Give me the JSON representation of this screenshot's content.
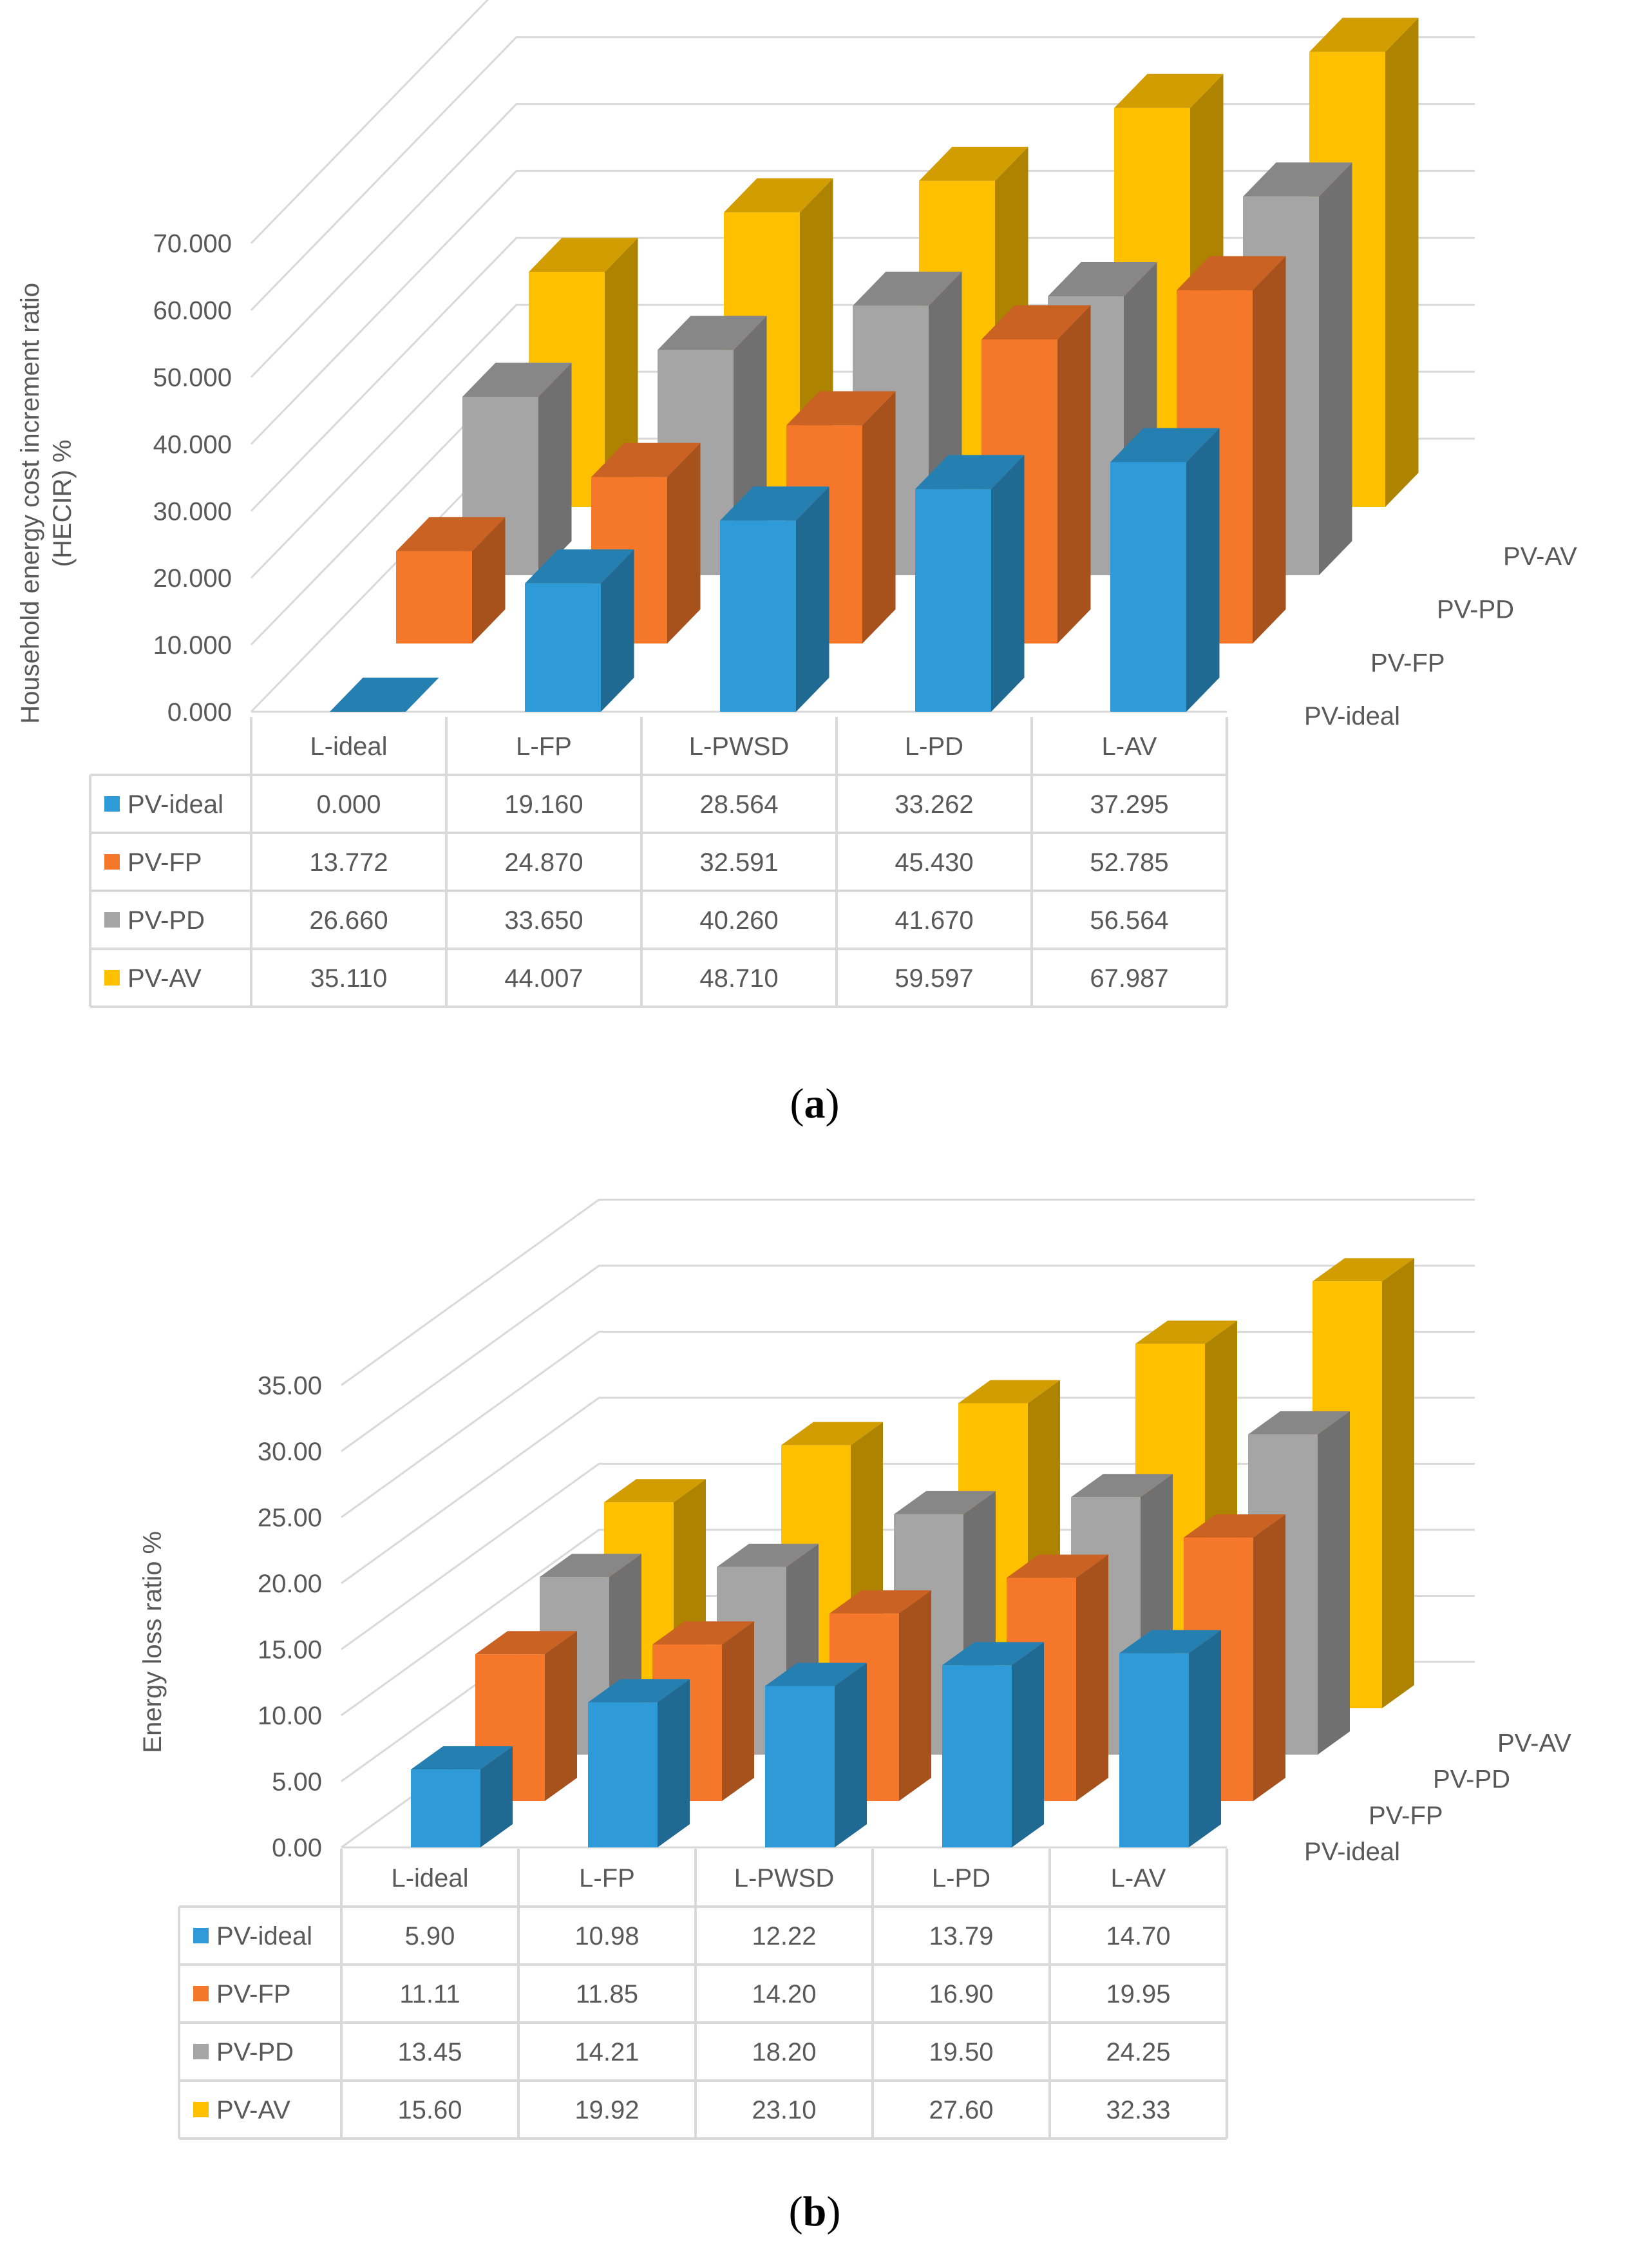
{
  "colors": {
    "PV-ideal": "#2e9bd8",
    "PV-FP": "#f5782a",
    "PV-PD": "#a5a5a5",
    "PV-AV": "#ffc000"
  },
  "chart_data": [
    {
      "id": "a",
      "type": "bar3d",
      "caption": "a",
      "ylabel_lines": [
        "Household energy cost increment ratio",
        "(HECIR)  %"
      ],
      "xlabel": "",
      "ylim": [
        0,
        70
      ],
      "ytick_labels": [
        "0.000",
        "10.000",
        "20.000",
        "30.000",
        "40.000",
        "50.000",
        "60.000",
        "70.000"
      ],
      "categories": [
        "L-ideal",
        "L-FP",
        "L-PWSD",
        "L-PD",
        "L-AV"
      ],
      "series": [
        {
          "name": "PV-ideal",
          "values": [
            0.0,
            19.16,
            28.564,
            33.262,
            37.295
          ],
          "labels": [
            "0.000",
            "19.160",
            "28.564",
            "33.262",
            "37.295"
          ]
        },
        {
          "name": "PV-FP",
          "values": [
            13.772,
            24.87,
            32.591,
            45.43,
            52.785
          ],
          "labels": [
            "13.772",
            "24.870",
            "32.591",
            "45.430",
            "52.785"
          ]
        },
        {
          "name": "PV-PD",
          "values": [
            26.66,
            33.65,
            40.26,
            41.67,
            56.564
          ],
          "labels": [
            "26.660",
            "33.650",
            "40.260",
            "41.670",
            "56.564"
          ]
        },
        {
          "name": "PV-AV",
          "values": [
            35.11,
            44.007,
            48.71,
            59.597,
            67.987
          ],
          "labels": [
            "35.110",
            "44.007",
            "48.710",
            "59.597",
            "67.987"
          ]
        }
      ]
    },
    {
      "id": "b",
      "type": "bar3d",
      "caption": "b",
      "ylabel_lines": [
        "Energy loss ratio   %"
      ],
      "xlabel": "",
      "ylim": [
        0,
        35
      ],
      "ytick_labels": [
        "0.00",
        "5.00",
        "10.00",
        "15.00",
        "20.00",
        "25.00",
        "30.00",
        "35.00"
      ],
      "categories": [
        "L-ideal",
        "L-FP",
        "L-PWSD",
        "L-PD",
        "L-AV"
      ],
      "series": [
        {
          "name": "PV-ideal",
          "values": [
            5.9,
            10.98,
            12.22,
            13.79,
            14.7
          ],
          "labels": [
            "5.90",
            "10.98",
            "12.22",
            "13.79",
            "14.70"
          ]
        },
        {
          "name": "PV-FP",
          "values": [
            11.11,
            11.85,
            14.2,
            16.9,
            19.95
          ],
          "labels": [
            "11.11",
            "11.85",
            "14.20",
            "16.90",
            "19.95"
          ]
        },
        {
          "name": "PV-PD",
          "values": [
            13.45,
            14.21,
            18.2,
            19.5,
            24.25
          ],
          "labels": [
            "13.45",
            "14.21",
            "18.20",
            "19.50",
            "24.25"
          ]
        },
        {
          "name": "PV-AV",
          "values": [
            15.6,
            19.92,
            23.1,
            27.6,
            32.33
          ],
          "labels": [
            "15.60",
            "19.92",
            "23.10",
            "27.60",
            "32.33"
          ]
        }
      ]
    }
  ]
}
